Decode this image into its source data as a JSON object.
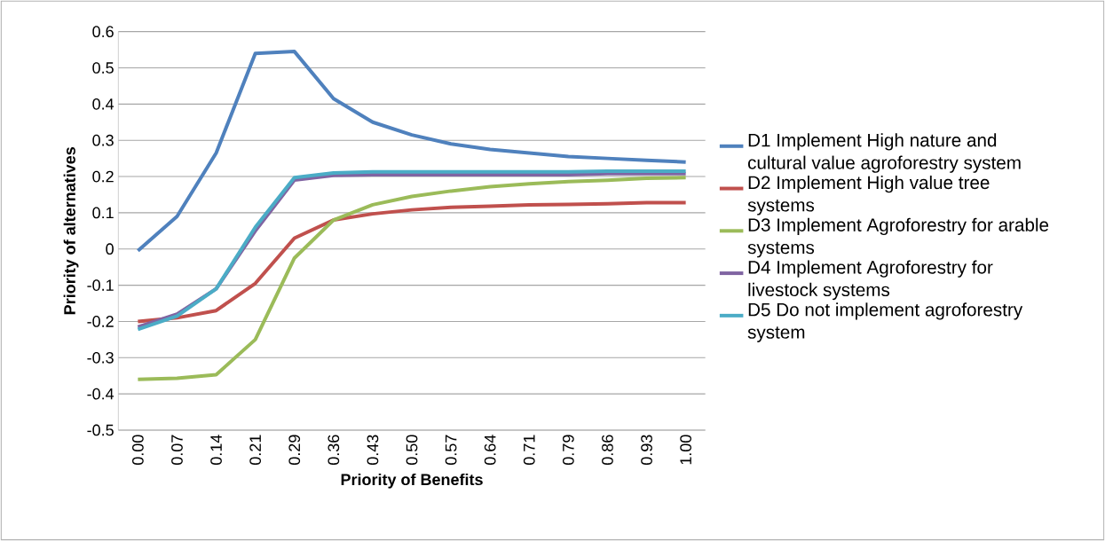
{
  "chart_data": {
    "type": "line",
    "xlabel": "Priority of Benefits",
    "ylabel": "Priority of alternatives",
    "categories": [
      "0.00",
      "0.07",
      "0.14",
      "0.21",
      "0.29",
      "0.36",
      "0.43",
      "0.50",
      "0.57",
      "0.64",
      "0.71",
      "0.79",
      "0.86",
      "0.93",
      "1.00"
    ],
    "series": [
      {
        "name": "D1 Implement High nature and cultural value agroforestry system",
        "color": "#4f81bd",
        "values": [
          -0.005,
          0.09,
          0.265,
          0.54,
          0.545,
          0.415,
          0.35,
          0.315,
          0.29,
          0.275,
          0.265,
          0.255,
          0.25,
          0.245,
          0.24
        ]
      },
      {
        "name": "D2 Implement High value tree systems",
        "color": "#c0504d",
        "values": [
          -0.2,
          -0.19,
          -0.17,
          -0.095,
          0.03,
          0.08,
          0.097,
          0.108,
          0.115,
          0.118,
          0.122,
          0.123,
          0.125,
          0.128,
          0.128
        ]
      },
      {
        "name": "D3 Implement Agroforestry for arable systems",
        "color": "#9bbb59",
        "values": [
          -0.36,
          -0.357,
          -0.347,
          -0.25,
          -0.025,
          0.08,
          0.122,
          0.145,
          0.16,
          0.172,
          0.18,
          0.186,
          0.19,
          0.195,
          0.197
        ]
      },
      {
        "name": "D4 Implement Agroforestry for livestock systems",
        "color": "#8064a2",
        "values": [
          -0.215,
          -0.18,
          -0.11,
          0.05,
          0.19,
          0.203,
          0.205,
          0.205,
          0.205,
          0.205,
          0.205,
          0.205,
          0.208,
          0.208,
          0.208
        ]
      },
      {
        "name": "D5 Do not implement agroforestry system",
        "color": "#4bacc6",
        "values": [
          -0.222,
          -0.185,
          -0.11,
          0.06,
          0.197,
          0.21,
          0.213,
          0.213,
          0.213,
          0.213,
          0.213,
          0.213,
          0.215,
          0.215,
          0.215
        ]
      }
    ],
    "ylim": [
      -0.5,
      0.6
    ],
    "yticks": [
      -0.5,
      -0.4,
      -0.3,
      -0.2,
      -0.1,
      0,
      0.1,
      0.2,
      0.3,
      0.4,
      0.5,
      0.6
    ],
    "grid": "y",
    "legend": "right",
    "marker": "none",
    "line_style": "solid"
  }
}
